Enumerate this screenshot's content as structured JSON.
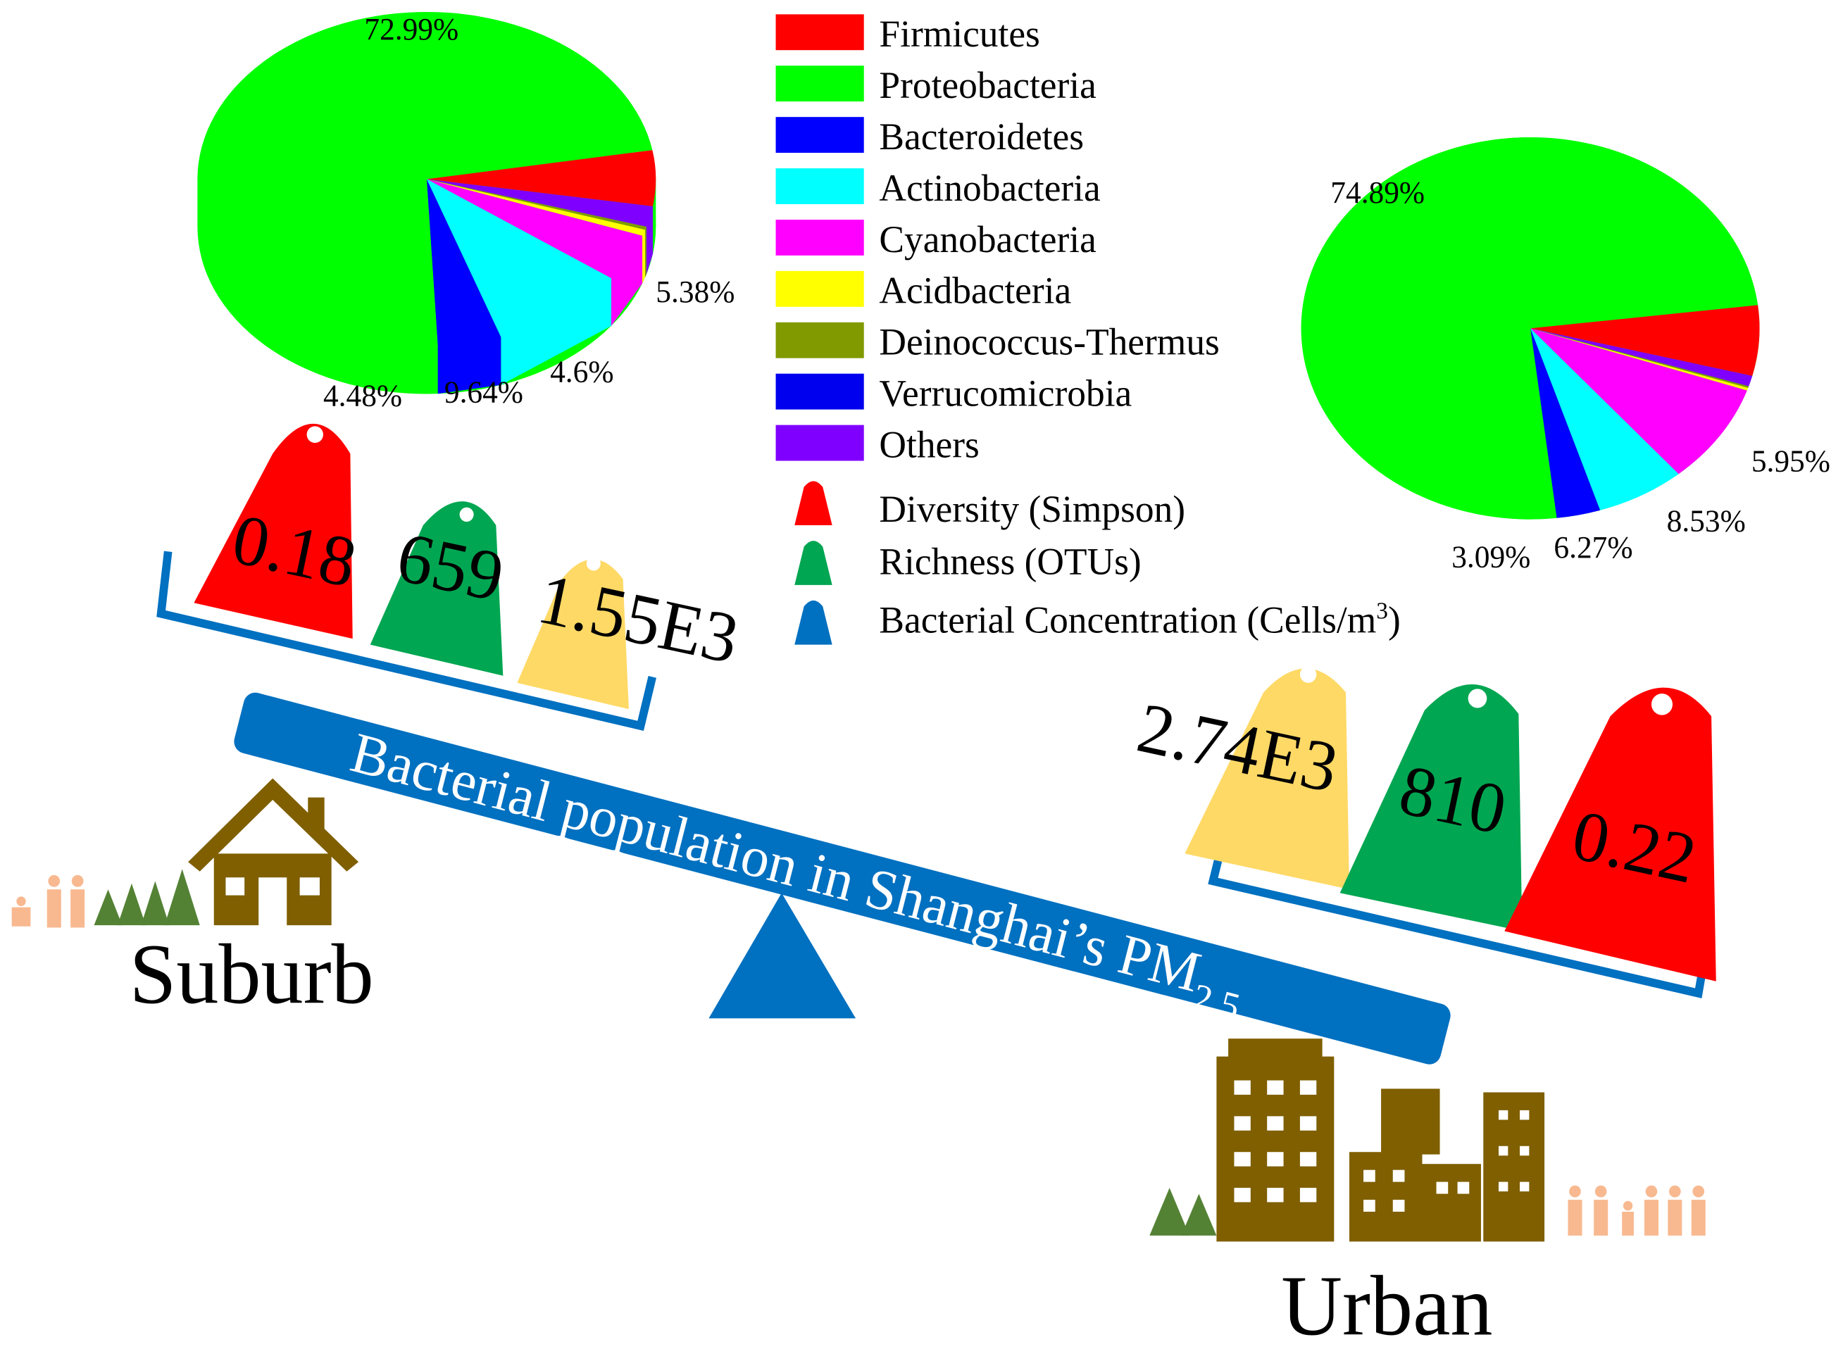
{
  "colors": {
    "firmicutes": "#ff0000",
    "proteobacteria": "#00ff00",
    "bacteroidetes": "#0000ff",
    "actinobacteria": "#00ffff",
    "cyanobacteria": "#ff00ff",
    "acidbacteria": "#ffff00",
    "deinococcus": "#809a00",
    "verrucomicrobia": "#0000ee",
    "others": "#8000ff",
    "diversity": "#ff0000",
    "richness": "#00a651",
    "concentration": "#ffd966",
    "beam": "#0070c0",
    "brown": "#7f5f00",
    "people": "#f8b990"
  },
  "chart_data": [
    {
      "type": "pie",
      "title": "Suburb",
      "labels": [
        "Firmicutes",
        "Others",
        "Deinococcus-Thermus",
        "Acidbacteria",
        "Cyanobacteria",
        "Actinobacteria",
        "Bacteroidetes",
        "Proteobacteria"
      ],
      "values": [
        5.38,
        2.0,
        0.3,
        0.6,
        4.6,
        9.64,
        4.48,
        72.99
      ],
      "data_labels": {
        "Proteobacteria": "72.99%",
        "Firmicutes": "5.38%",
        "Cyanobacteria": "4.6%",
        "Actinobacteria": "9.64%",
        "Bacteroidetes": "4.48%"
      }
    },
    {
      "type": "pie",
      "title": "Urban",
      "labels": [
        "Firmicutes",
        "Others",
        "Deinococcus-Thermus",
        "Acidbacteria",
        "Cyanobacteria",
        "Actinobacteria",
        "Bacteroidetes",
        "Proteobacteria"
      ],
      "values": [
        5.95,
        0.9,
        0.15,
        0.22,
        8.53,
        6.27,
        3.09,
        74.89
      ],
      "data_labels": {
        "Proteobacteria": "74.89%",
        "Firmicutes": "5.95%",
        "Cyanobacteria": "8.53%",
        "Actinobacteria": "6.27%",
        "Bacteroidetes": "3.09%"
      }
    }
  ],
  "legend": [
    "Firmicutes",
    "Proteobacteria",
    "Bacteroidetes",
    "Actinobacteria",
    "Cyanobacteria",
    "Acidbacteria",
    "Deinococcus-Thermus",
    "Verrucomicrobia",
    "Others"
  ],
  "weights_legend": {
    "diversity": "Diversity (Simpson)",
    "richness": "Richness (OTUs)",
    "concentration": "Bacterial Concentration (Cells/m",
    "concentration_sup": "3",
    "concentration_close": ")"
  },
  "suburb": {
    "label": "Suburb",
    "diversity": "0.18",
    "richness": "659",
    "concentration": "1.55E3"
  },
  "urban": {
    "label": "Urban",
    "diversity": "0.22",
    "richness": "810",
    "concentration": "2.74E3"
  },
  "beam": {
    "text": "Bacterial population in Shanghai’s PM",
    "subscript": "2.5"
  }
}
